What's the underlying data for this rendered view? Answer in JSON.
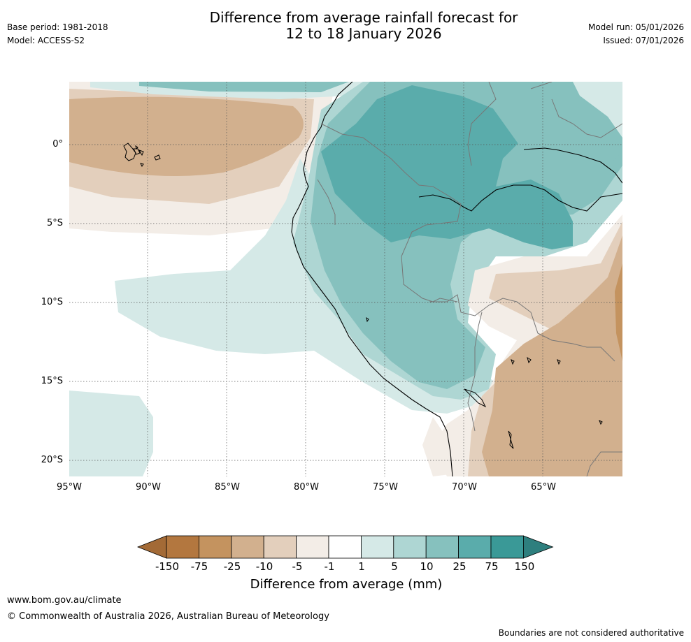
{
  "header": {
    "title_line1": "Difference from average rainfall forecast for",
    "title_line2": "12 to 18 January 2026",
    "base_period": "Base period: 1981-2018",
    "model": "Model: ACCESS-S2",
    "model_run": "Model run: 05/01/2026",
    "issued": "Issued: 07/01/2026"
  },
  "map": {
    "y_ticks": [
      "0°",
      "5°S",
      "10°S",
      "15°S",
      "20°S"
    ],
    "x_ticks": [
      "95°W",
      "90°W",
      "85°W",
      "80°W",
      "75°W",
      "70°W",
      "65°W"
    ]
  },
  "legend": {
    "title": "Difference from average (mm)",
    "labels": [
      "-150",
      "-75",
      "-25",
      "-10",
      "-5",
      "-1",
      "1",
      "5",
      "10",
      "25",
      "75",
      "150"
    ],
    "colors": [
      "#a36a36",
      "#b3773f",
      "#c4935f",
      "#d2b08e",
      "#e3cfbc",
      "#f3ede7",
      "#ffffff",
      "#d5e9e7",
      "#aed6d3",
      "#86c1be",
      "#5aacab",
      "#3a9997",
      "#2e7f7e"
    ]
  },
  "footer": {
    "website": "www.bom.gov.au/climate",
    "copyright": "© Commonwealth of Australia 2026, Australian Bureau of Meteorology",
    "disclaimer": "Boundaries are not considered authoritative"
  }
}
